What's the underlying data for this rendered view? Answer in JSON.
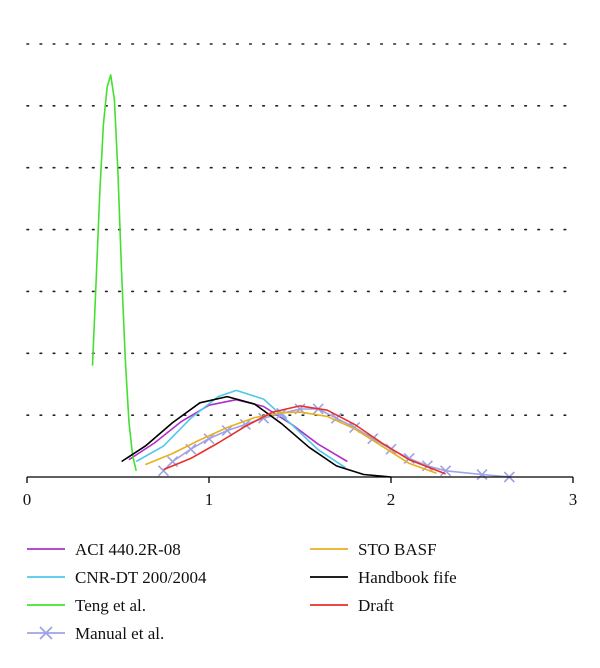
{
  "chart_data": {
    "type": "line",
    "title": "",
    "xlabel": "",
    "ylabel": "",
    "xlim": [
      0,
      3
    ],
    "x_ticks": [
      0,
      1,
      2,
      3
    ],
    "x_tick_labels": [
      "0",
      "1",
      "2",
      "3"
    ],
    "ylim": [
      0,
      7
    ],
    "y_gridlines": [
      1,
      2,
      3,
      4,
      5,
      6,
      7
    ],
    "grid": "horizontal dotted",
    "legend_placement": "below, two columns",
    "series": [
      {
        "name": "ACI 440.2R-08",
        "color": "#b030c8",
        "marker": "none",
        "peak_x": 1.15,
        "peak_y": 1.25,
        "x": [
          0.56,
          0.7,
          0.85,
          1.0,
          1.15,
          1.3,
          1.45,
          1.6,
          1.76
        ],
        "y": [
          0.28,
          0.55,
          0.9,
          1.16,
          1.25,
          1.14,
          0.86,
          0.53,
          0.25
        ]
      },
      {
        "name": "CNR-DT 200/2004",
        "color": "#50c8e8",
        "marker": "none",
        "peak_x": 1.15,
        "peak_y": 1.4,
        "x": [
          0.6,
          0.75,
          0.9,
          1.05,
          1.15,
          1.3,
          1.45,
          1.6,
          1.75
        ],
        "y": [
          0.25,
          0.5,
          0.95,
          1.3,
          1.4,
          1.26,
          0.86,
          0.44,
          0.15
        ]
      },
      {
        "name": "Teng et al.",
        "color": "#44e030",
        "marker": "none",
        "peak_x": 0.46,
        "peak_y": 6.5,
        "x": [
          0.36,
          0.38,
          0.4,
          0.42,
          0.44,
          0.46,
          0.48,
          0.5,
          0.52,
          0.54,
          0.56,
          0.58,
          0.6
        ],
        "y": [
          1.8,
          3.2,
          4.6,
          5.7,
          6.3,
          6.5,
          6.1,
          4.9,
          3.3,
          1.9,
          0.9,
          0.35,
          0.1
        ]
      },
      {
        "name": "Manual et al.",
        "color": "#9ea2e6",
        "marker": "x",
        "peak_x": 1.55,
        "peak_y": 1.1,
        "x": [
          0.75,
          0.8,
          0.9,
          1.0,
          1.1,
          1.2,
          1.3,
          1.4,
          1.5,
          1.6,
          1.7,
          1.8,
          1.9,
          2.0,
          2.1,
          2.2,
          2.3,
          2.5,
          2.65
        ],
        "y": [
          0.1,
          0.25,
          0.45,
          0.62,
          0.75,
          0.85,
          0.95,
          1.03,
          1.1,
          1.1,
          0.95,
          0.8,
          0.62,
          0.45,
          0.3,
          0.18,
          0.1,
          0.04,
          0.0
        ]
      },
      {
        "name": "STO BASF",
        "color": "#e8b020",
        "marker": "none",
        "peak_x": 1.5,
        "peak_y": 1.05,
        "x": [
          0.65,
          0.8,
          0.95,
          1.1,
          1.25,
          1.4,
          1.5,
          1.65,
          1.8,
          1.95,
          2.1,
          2.25
        ],
        "y": [
          0.2,
          0.38,
          0.6,
          0.8,
          0.96,
          1.04,
          1.05,
          0.98,
          0.78,
          0.5,
          0.22,
          0.06
        ]
      },
      {
        "name": "Handbook fife",
        "color": "#000000",
        "marker": "none",
        "peak_x": 1.1,
        "peak_y": 1.3,
        "x": [
          0.52,
          0.65,
          0.8,
          0.95,
          1.1,
          1.25,
          1.4,
          1.55,
          1.7,
          1.85,
          2.0
        ],
        "y": [
          0.25,
          0.5,
          0.88,
          1.2,
          1.3,
          1.18,
          0.86,
          0.48,
          0.18,
          0.04,
          0.0
        ]
      },
      {
        "name": "Draft",
        "color": "#e8302a",
        "marker": "none",
        "peak_x": 1.5,
        "peak_y": 1.15,
        "x": [
          0.75,
          0.9,
          1.05,
          1.2,
          1.35,
          1.5,
          1.65,
          1.8,
          1.95,
          2.1,
          2.3
        ],
        "y": [
          0.12,
          0.3,
          0.55,
          0.82,
          1.05,
          1.15,
          1.08,
          0.85,
          0.55,
          0.28,
          0.05
        ]
      }
    ]
  }
}
